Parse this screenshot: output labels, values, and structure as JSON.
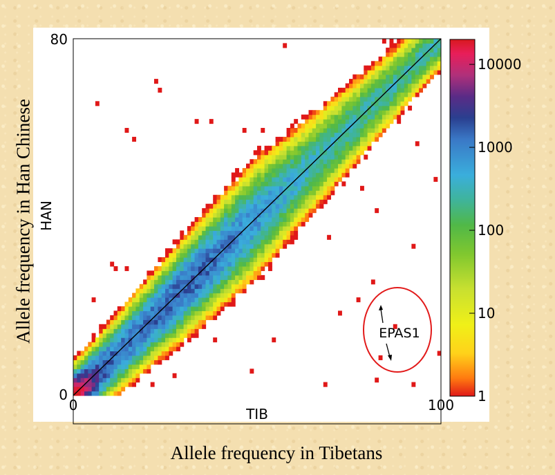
{
  "chart_data": {
    "type": "heatmap",
    "x_axis": {
      "label": "TIB",
      "range": [
        0,
        100
      ],
      "ticks": [
        "0",
        "100"
      ]
    },
    "y_axis": {
      "label": "HAN",
      "range": [
        0,
        80
      ],
      "ticks": [
        "0",
        "80"
      ]
    },
    "colorbar": {
      "scale": "log",
      "range": [
        1,
        20000
      ],
      "ticks": [
        "1",
        "10",
        "100",
        "1000",
        "10000"
      ],
      "colors": [
        "#e01818",
        "#ff7a10",
        "#ffd21a",
        "#f0f018",
        "#c8e030",
        "#7fc72f",
        "#50b848",
        "#3fb49b",
        "#3aaedc",
        "#3a78c6",
        "#2a3f8f",
        "#5a2b86",
        "#b0307a",
        "#e81e5a",
        "#d8191f"
      ]
    },
    "diagonal_line": true,
    "annotation": {
      "text": "EPAS1",
      "points": [
        {
          "x": 81,
          "y": 25.5
        },
        {
          "x": 83,
          "y": 8
        }
      ]
    },
    "outer_xlabel": "Allele frequency in Tibetans",
    "outer_ylabel": "Allele frequency in Han Chinese"
  }
}
